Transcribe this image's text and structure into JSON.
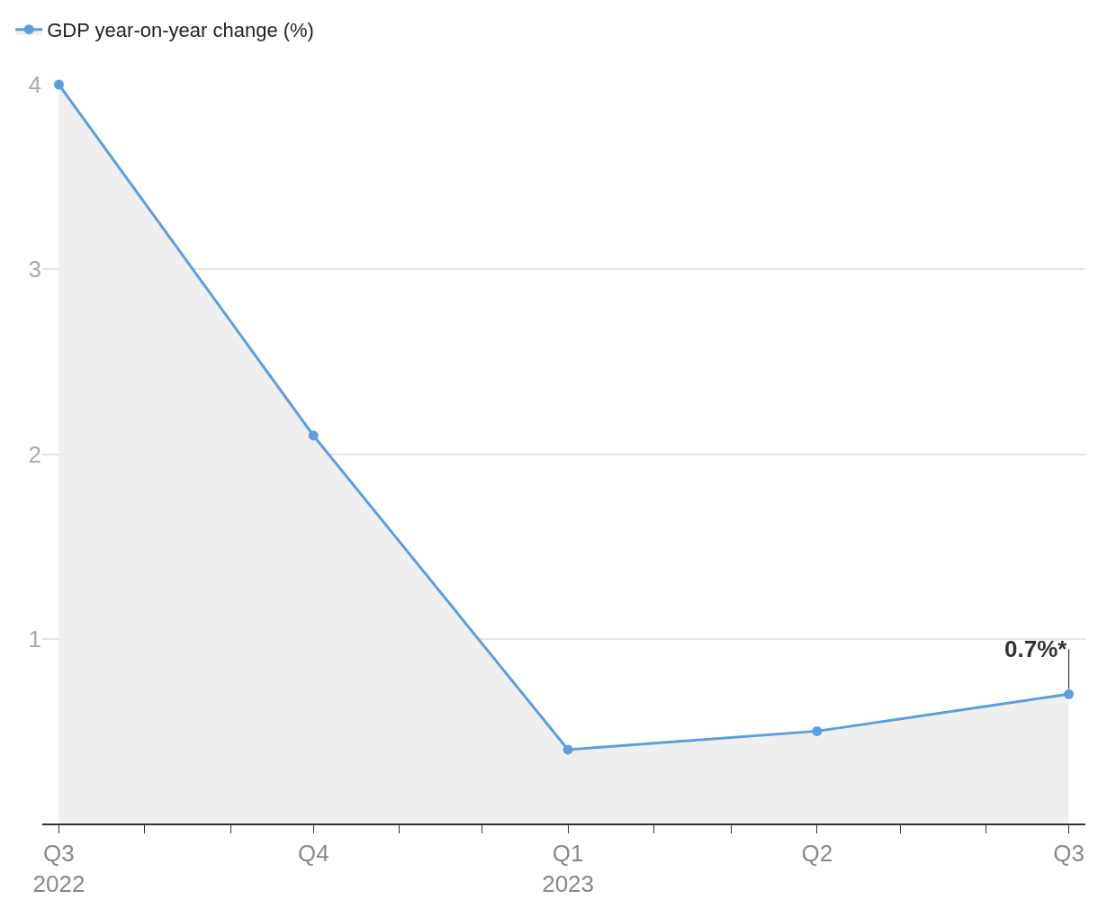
{
  "chart_data": {
    "type": "area",
    "x": [
      "2022-07-01",
      "2022-10-01",
      "2023-01-01",
      "2023-04-01",
      "2023-07-01"
    ],
    "series": [
      {
        "name": "GDP year-on-year change (%)",
        "color": "#5b9ee0",
        "values": [
          4,
          2.1,
          0.4,
          0.5,
          0.7
        ]
      }
    ],
    "xlim": [
      "2022-06-25",
      "2023-07-07"
    ],
    "xticks": [
      {
        "value": "2022-07-01",
        "label": "Q3\n2022"
      },
      {
        "value": "2022-08-01",
        "label": null
      },
      {
        "value": "2022-09-01",
        "label": null
      },
      {
        "value": "2022-10-01",
        "label": "Q4"
      },
      {
        "value": "2022-11-01",
        "label": null
      },
      {
        "value": "2022-12-01",
        "label": null
      },
      {
        "value": "2023-01-01",
        "label": "Q1\n2023"
      },
      {
        "value": "2023-02-01",
        "label": null
      },
      {
        "value": "2023-03-01",
        "label": null
      },
      {
        "value": "2023-04-01",
        "label": "Q2"
      },
      {
        "value": "2023-05-01",
        "label": null
      },
      {
        "value": "2023-06-01",
        "label": null
      },
      {
        "value": "2023-07-01",
        "label": "Q3"
      }
    ],
    "ylim": [
      0,
      4
    ],
    "yticks": [
      1,
      2,
      3,
      4
    ],
    "annotations": [
      {
        "text": "0.7%*",
        "x": "2023-07-01",
        "y": 0.7
      }
    ],
    "grid": "y",
    "legend": "top left",
    "marker": "circle",
    "line_style": "solid"
  }
}
